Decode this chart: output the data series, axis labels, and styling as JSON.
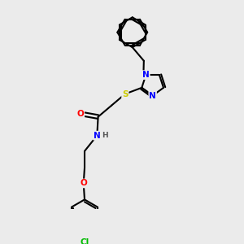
{
  "bg_color": "#ebebeb",
  "atom_colors": {
    "N": "#0000ff",
    "O": "#ff0000",
    "S": "#cccc00",
    "Cl": "#00bb00",
    "C": "#000000",
    "H": "#555555"
  },
  "bond_color": "#000000",
  "lw": 1.5
}
